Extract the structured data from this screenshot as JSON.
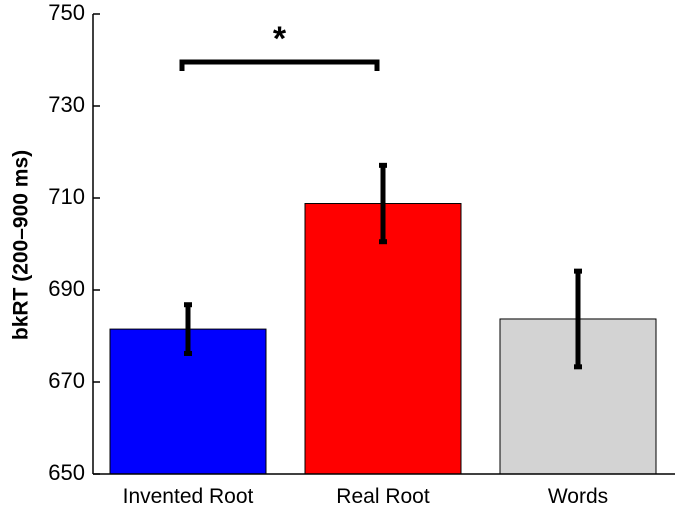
{
  "chart_data": {
    "type": "bar",
    "categories": [
      "Invented Root",
      "Real Root",
      "Words"
    ],
    "values": [
      681.5,
      708.8,
      683.7
    ],
    "error": [
      5.3,
      8.3,
      10.4
    ],
    "bar_colors": [
      "#0000ff",
      "#ff0000",
      "#d3d3d3"
    ],
    "ylabel": "bkRT (200–900 ms)",
    "ylim": [
      650,
      750
    ],
    "yticks": [
      "650",
      "670",
      "690",
      "710",
      "730",
      "750"
    ],
    "annotation": {
      "label": "*",
      "from": "Invented Root",
      "to": "Real Root"
    }
  }
}
